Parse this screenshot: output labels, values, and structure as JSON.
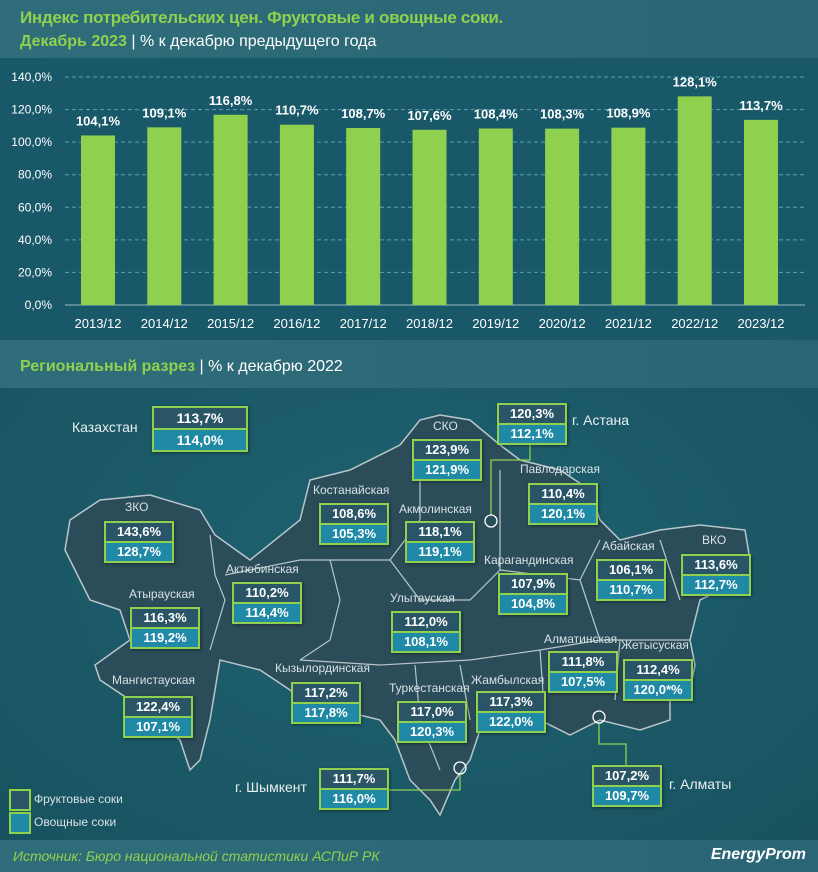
{
  "header": {
    "title": "Индекс потребительских цен. Фруктовые и овощные соки.",
    "period": "Декабрь 2023",
    "subtitle": "| % к декабрю предыдущего года"
  },
  "chart_data": {
    "type": "bar",
    "categories": [
      "2013/12",
      "2014/12",
      "2015/12",
      "2016/12",
      "2017/12",
      "2018/12",
      "2019/12",
      "2020/12",
      "2021/12",
      "2022/12",
      "2023/12"
    ],
    "values": [
      104.1,
      109.1,
      116.8,
      110.7,
      108.7,
      107.6,
      108.4,
      108.3,
      108.9,
      128.1,
      113.7
    ],
    "data_labels": [
      "104,1%",
      "109,1%",
      "116,8%",
      "110,7%",
      "108,7%",
      "107,6%",
      "108,4%",
      "108,3%",
      "108,9%",
      "128,1%",
      "113,7%"
    ],
    "yticks": [
      "0,0%",
      "20,0%",
      "40,0%",
      "60,0%",
      "80,0%",
      "100,0%",
      "120,0%",
      "140,0%"
    ],
    "ylim": [
      0,
      140
    ],
    "grid": true,
    "bar_color": "#8fd14f"
  },
  "regional": {
    "title": "Региональный разрез",
    "subtitle": "| % к декабрю 2022"
  },
  "legend": {
    "fruit": "Фруктовые соки",
    "veg": "Овощные соки",
    "fruit_color": "#2a5566",
    "veg_color": "#1f89a6"
  },
  "regions": [
    {
      "name": "Казахстан",
      "fruit": "113,7%",
      "veg": "114,0%"
    },
    {
      "name": "г. Астана",
      "fruit": "120,3%",
      "veg": "112,1%"
    },
    {
      "name": "СКО",
      "fruit": "123,9%",
      "veg": "121,9%"
    },
    {
      "name": "Павлодарская",
      "fruit": "110,4%",
      "veg": "120,1%"
    },
    {
      "name": "Костанайская",
      "fruit": "108,6%",
      "veg": "105,3%"
    },
    {
      "name": "Акмолинская",
      "fruit": "118,1%",
      "veg": "119,1%"
    },
    {
      "name": "ЗКО",
      "fruit": "143,6%",
      "veg": "128,7%"
    },
    {
      "name": "Актюбинская",
      "fruit": "110,2%",
      "veg": "114,4%"
    },
    {
      "name": "Атырауская",
      "fruit": "116,3%",
      "veg": "119,2%"
    },
    {
      "name": "Карагандинская",
      "fruit": "107,9%",
      "veg": "104,8%"
    },
    {
      "name": "Улытауская",
      "fruit": "112,0%",
      "veg": "108,1%"
    },
    {
      "name": "Абайская",
      "fruit": "106,1%",
      "veg": "110,7%"
    },
    {
      "name": "ВКО",
      "fruit": "113,6%",
      "veg": "112,7%"
    },
    {
      "name": "Мангистауская",
      "fruit": "122,4%",
      "veg": "107,1%"
    },
    {
      "name": "Кызылординская",
      "fruit": "117,2%",
      "veg": "117,8%"
    },
    {
      "name": "Туркестанская",
      "fruit": "117,0%",
      "veg": "120,3%"
    },
    {
      "name": "Жамбылская",
      "fruit": "117,3%",
      "veg": "122,0%"
    },
    {
      "name": "Алматинская",
      "fruit": "111,8%",
      "veg": "107,5%"
    },
    {
      "name": "Жетысуская",
      "fruit": "112,4%",
      "veg": "120,0*%"
    },
    {
      "name": "г. Шымкент",
      "fruit": "111,7%",
      "veg": "116,0%"
    },
    {
      "name": "г. Алматы",
      "fruit": "107,2%",
      "veg": "109,7%"
    }
  ],
  "footer": {
    "source": "Источник: Бюро национальной статистики АСПиР РК",
    "logo": "EnergyProm"
  }
}
